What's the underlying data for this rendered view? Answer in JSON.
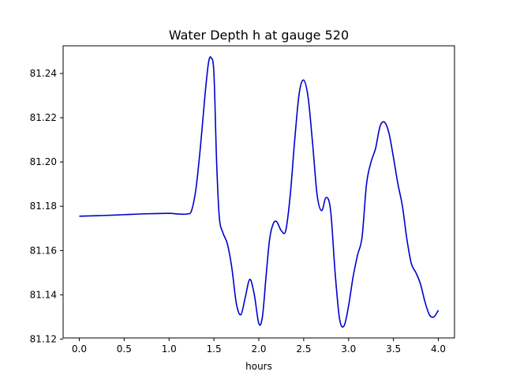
{
  "chart_data": {
    "type": "line",
    "title": "Water Depth h at gauge 520",
    "xlabel": "hours",
    "ylabel": "",
    "xlim": [
      -0.18,
      4.18
    ],
    "ylim": [
      81.1205,
      81.2525
    ],
    "xticks": [
      0.0,
      0.5,
      1.0,
      1.5,
      2.0,
      2.5,
      3.0,
      3.5,
      4.0
    ],
    "xtick_labels": [
      "0.0",
      "0.5",
      "1.0",
      "1.5",
      "2.0",
      "2.5",
      "3.0",
      "3.5",
      "4.0"
    ],
    "yticks": [
      81.12,
      81.14,
      81.16,
      81.18,
      81.2,
      81.22,
      81.24
    ],
    "ytick_labels": [
      "81.12",
      "81.14",
      "81.16",
      "81.18",
      "81.20",
      "81.22",
      "81.24"
    ],
    "grid": false,
    "colors": {
      "line": "#0000cc",
      "axes": "#000000",
      "background": "#ffffff"
    },
    "series": [
      {
        "x": [
          0.0,
          0.25,
          0.5,
          0.75,
          1.0,
          1.1,
          1.2,
          1.25,
          1.3,
          1.35,
          1.4,
          1.44,
          1.47,
          1.5,
          1.53,
          1.56,
          1.6,
          1.65,
          1.7,
          1.75,
          1.8,
          1.85,
          1.9,
          1.95,
          2.0,
          2.04,
          2.08,
          2.12,
          2.16,
          2.2,
          2.25,
          2.3,
          2.35,
          2.4,
          2.45,
          2.5,
          2.55,
          2.6,
          2.65,
          2.7,
          2.75,
          2.8,
          2.85,
          2.9,
          2.95,
          3.0,
          3.05,
          3.1,
          3.15,
          3.2,
          3.25,
          3.3,
          3.35,
          3.4,
          3.45,
          3.5,
          3.55,
          3.6,
          3.65,
          3.7,
          3.75,
          3.8,
          3.85,
          3.9,
          3.95,
          4.0
        ],
        "y": [
          81.1755,
          81.1758,
          81.1762,
          81.1766,
          81.1768,
          81.1765,
          81.1765,
          81.178,
          81.188,
          81.207,
          81.23,
          81.245,
          81.247,
          81.24,
          81.2,
          81.175,
          81.168,
          81.163,
          81.152,
          81.136,
          81.131,
          81.139,
          81.147,
          81.14,
          81.127,
          81.13,
          81.148,
          81.165,
          81.172,
          81.173,
          81.169,
          81.169,
          81.185,
          81.21,
          81.231,
          81.237,
          81.229,
          81.208,
          81.185,
          81.178,
          81.184,
          81.178,
          81.15,
          81.129,
          81.126,
          81.135,
          81.148,
          81.158,
          81.166,
          81.19,
          81.2,
          81.206,
          81.216,
          81.218,
          81.213,
          81.202,
          81.19,
          81.18,
          81.165,
          81.154,
          81.15,
          81.145,
          81.137,
          81.131,
          81.13,
          81.133
        ]
      }
    ]
  }
}
